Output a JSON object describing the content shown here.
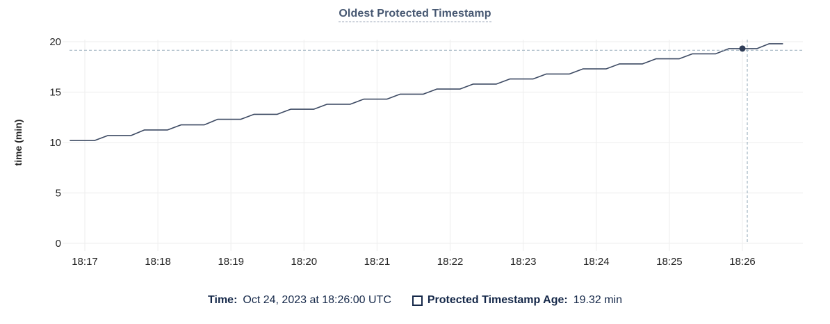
{
  "header": {
    "title": "Oldest Protected Timestamp"
  },
  "chart_data": {
    "type": "line",
    "title": "Oldest Protected Timestamp",
    "xlabel": "",
    "ylabel": "time (min)",
    "x_ticks": [
      "18:17",
      "18:18",
      "18:19",
      "18:20",
      "18:21",
      "18:22",
      "18:23",
      "18:24",
      "18:25",
      "18:26"
    ],
    "x_tick_interval_seconds": 60,
    "t_seconds_origin": "18:17:00",
    "y_ticks": [
      0,
      5,
      10,
      15,
      20
    ],
    "ylim": [
      0,
      20
    ],
    "grid": true,
    "legend_position": "bottom",
    "series": [
      {
        "name": "Protected Timestamp Age",
        "unit": "min",
        "points": [
          [
            -12,
            10.2
          ],
          [
            8,
            10.2
          ],
          [
            19,
            10.7
          ],
          [
            38,
            10.7
          ],
          [
            49,
            11.25
          ],
          [
            68,
            11.25
          ],
          [
            79,
            11.75
          ],
          [
            98,
            11.75
          ],
          [
            109,
            12.3
          ],
          [
            128,
            12.3
          ],
          [
            139,
            12.8
          ],
          [
            158,
            12.8
          ],
          [
            169,
            13.3
          ],
          [
            188,
            13.3
          ],
          [
            199,
            13.8
          ],
          [
            218,
            13.8
          ],
          [
            229,
            14.3
          ],
          [
            248,
            14.3
          ],
          [
            259,
            14.8
          ],
          [
            278,
            14.8
          ],
          [
            289,
            15.3
          ],
          [
            308,
            15.3
          ],
          [
            319,
            15.8
          ],
          [
            338,
            15.8
          ],
          [
            349,
            16.3
          ],
          [
            368,
            16.3
          ],
          [
            379,
            16.8
          ],
          [
            398,
            16.8
          ],
          [
            409,
            17.3
          ],
          [
            428,
            17.3
          ],
          [
            439,
            17.8
          ],
          [
            458,
            17.8
          ],
          [
            469,
            18.3
          ],
          [
            488,
            18.3
          ],
          [
            499,
            18.8
          ],
          [
            518,
            18.8
          ],
          [
            529,
            19.32
          ],
          [
            552,
            19.32
          ],
          [
            562,
            19.8
          ],
          [
            573,
            19.8
          ]
        ]
      }
    ],
    "hover": {
      "time": "18:26:00",
      "point_t_seconds": 540,
      "value_min": 19.32,
      "crosshair_t_seconds": 544,
      "crosshair_value_min": 19.15
    }
  },
  "legend": {
    "time_label": "Time:",
    "time_value": "Oct 24, 2023 at 18:26:00 UTC",
    "series_label": "Protected Timestamp Age:",
    "series_value": "19.32 min"
  },
  "colors": {
    "line": "#3d4a63",
    "hover_point": "#2f3d57",
    "crosshair": "#a2b5c2",
    "grid": "#f0f0f0",
    "tick_text": "#242424",
    "title_text": "#475872",
    "title_underline": "#8a97ad",
    "legend_text": "#152849"
  }
}
